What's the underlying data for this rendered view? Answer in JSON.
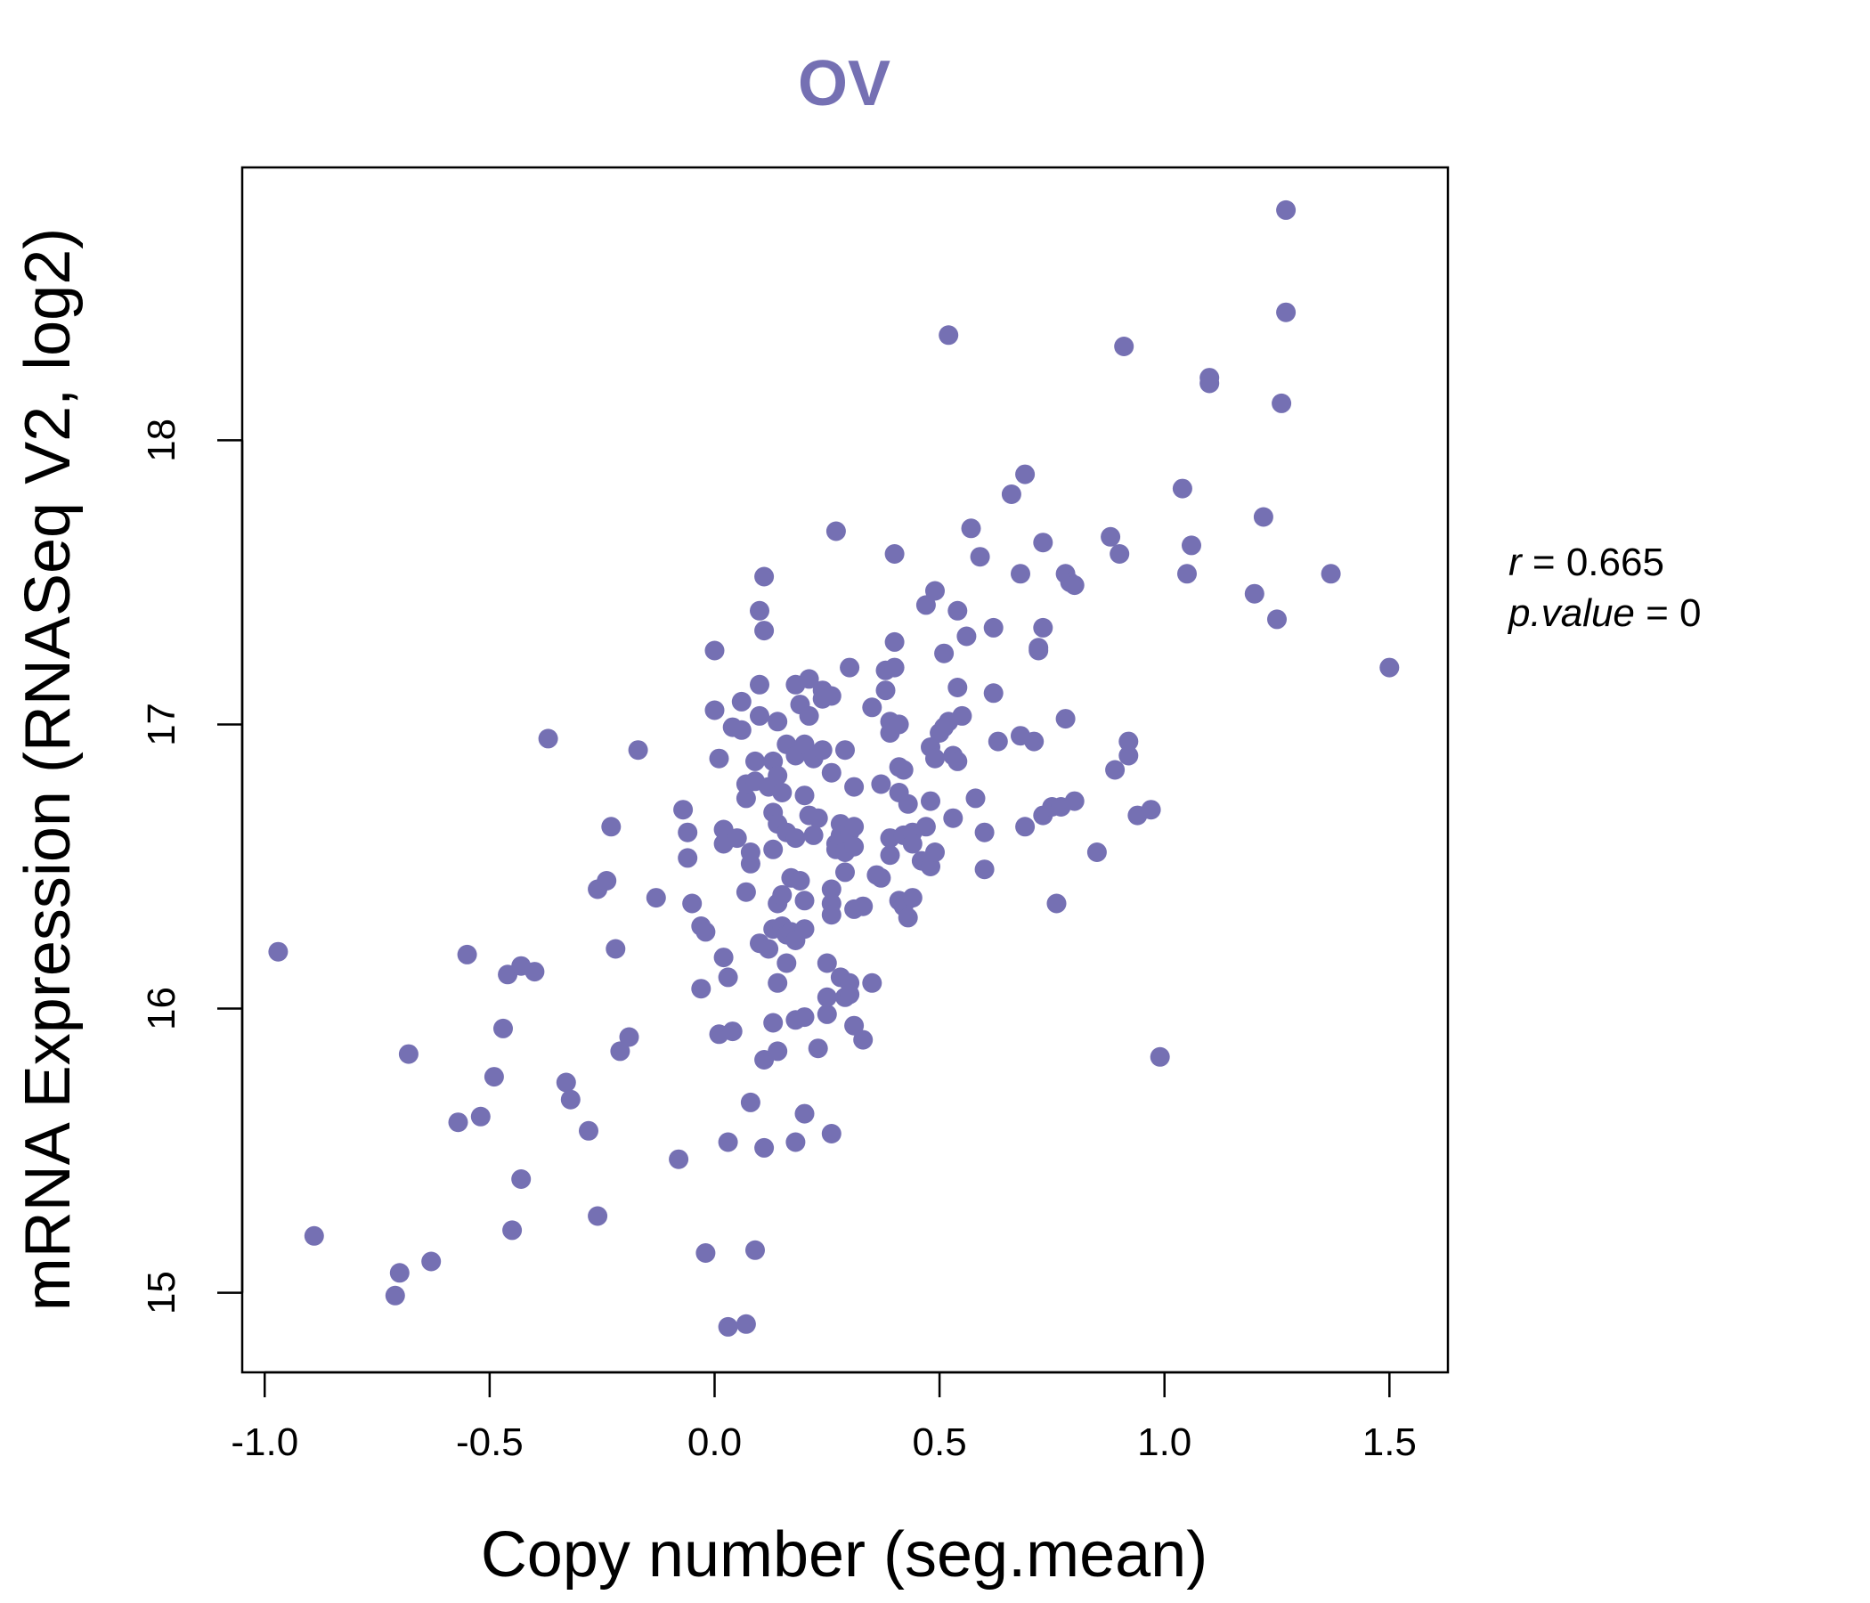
{
  "chart_data": {
    "type": "scatter",
    "title": "OV",
    "xlabel": "Copy number (seg.mean)",
    "ylabel": "mRNA Expression (RNASeq V2, log2)",
    "xlim": [
      -1.05,
      1.63
    ],
    "ylim": [
      14.72,
      18.96
    ],
    "x_ticks": [
      -1.0,
      -0.5,
      0.0,
      0.5,
      1.0,
      1.5
    ],
    "x_tick_labels": [
      "-1.0",
      "-0.5",
      "0.0",
      "0.5",
      "1.0",
      "1.5"
    ],
    "y_ticks": [
      15,
      16,
      17,
      18
    ],
    "y_tick_labels": [
      "15",
      "16",
      "17",
      "18"
    ],
    "grid": false,
    "legend": "none",
    "point_color": "#7570b3",
    "annotation": {
      "r_symbol": "r",
      "r_value": "0.665",
      "p_symbol": "p.value",
      "p_value": "0"
    },
    "points": [
      [
        -0.97,
        16.2
      ],
      [
        -0.89,
        15.2
      ],
      [
        -0.71,
        14.99
      ],
      [
        -0.7,
        15.07
      ],
      [
        -0.68,
        15.84
      ],
      [
        -0.63,
        15.11
      ],
      [
        -0.57,
        15.6
      ],
      [
        -0.55,
        16.19
      ],
      [
        -0.52,
        15.62
      ],
      [
        -0.49,
        15.76
      ],
      [
        -0.47,
        15.93
      ],
      [
        -0.46,
        16.12
      ],
      [
        -0.45,
        15.22
      ],
      [
        -0.43,
        15.4
      ],
      [
        -0.43,
        16.15
      ],
      [
        -0.4,
        16.13
      ],
      [
        -0.37,
        16.95
      ],
      [
        -0.33,
        15.74
      ],
      [
        -0.32,
        15.68
      ],
      [
        -0.28,
        15.57
      ],
      [
        -0.26,
        15.27
      ],
      [
        -0.26,
        16.42
      ],
      [
        -0.24,
        16.45
      ],
      [
        -0.23,
        16.64
      ],
      [
        -0.22,
        16.21
      ],
      [
        -0.21,
        15.85
      ],
      [
        -0.19,
        15.9
      ],
      [
        -0.17,
        16.91
      ],
      [
        -0.13,
        16.39
      ],
      [
        -0.08,
        15.47
      ],
      [
        -0.07,
        16.7
      ],
      [
        -0.06,
        16.62
      ],
      [
        -0.06,
        16.53
      ],
      [
        -0.05,
        16.37
      ],
      [
        -0.03,
        16.29
      ],
      [
        -0.03,
        16.07
      ],
      [
        -0.02,
        16.27
      ],
      [
        -0.02,
        15.14
      ],
      [
        0.0,
        17.26
      ],
      [
        0.0,
        17.05
      ],
      [
        0.01,
        15.91
      ],
      [
        0.01,
        16.88
      ],
      [
        0.02,
        16.63
      ],
      [
        0.02,
        16.58
      ],
      [
        0.02,
        16.18
      ],
      [
        0.03,
        14.88
      ],
      [
        0.03,
        15.53
      ],
      [
        0.03,
        16.11
      ],
      [
        0.04,
        16.99
      ],
      [
        0.04,
        15.92
      ],
      [
        0.05,
        16.6
      ],
      [
        0.06,
        16.98
      ],
      [
        0.06,
        17.08
      ],
      [
        0.07,
        16.74
      ],
      [
        0.07,
        16.79
      ],
      [
        0.07,
        16.41
      ],
      [
        0.07,
        14.89
      ],
      [
        0.08,
        16.51
      ],
      [
        0.08,
        16.55
      ],
      [
        0.08,
        15.67
      ],
      [
        0.09,
        16.8
      ],
      [
        0.09,
        16.87
      ],
      [
        0.09,
        15.15
      ],
      [
        0.1,
        17.4
      ],
      [
        0.1,
        17.14
      ],
      [
        0.1,
        17.03
      ],
      [
        0.1,
        16.23
      ],
      [
        0.11,
        17.33
      ],
      [
        0.11,
        17.52
      ],
      [
        0.11,
        15.82
      ],
      [
        0.11,
        15.51
      ],
      [
        0.12,
        16.21
      ],
      [
        0.12,
        16.78
      ],
      [
        0.13,
        16.87
      ],
      [
        0.13,
        16.69
      ],
      [
        0.13,
        16.56
      ],
      [
        0.13,
        16.28
      ],
      [
        0.13,
        15.95
      ],
      [
        0.14,
        17.01
      ],
      [
        0.14,
        16.82
      ],
      [
        0.14,
        16.65
      ],
      [
        0.14,
        16.37
      ],
      [
        0.14,
        16.09
      ],
      [
        0.14,
        15.85
      ],
      [
        0.15,
        16.76
      ],
      [
        0.15,
        16.4
      ],
      [
        0.15,
        16.29
      ],
      [
        0.16,
        16.93
      ],
      [
        0.16,
        16.62
      ],
      [
        0.16,
        16.26
      ],
      [
        0.16,
        16.16
      ],
      [
        0.17,
        16.46
      ],
      [
        0.17,
        16.27
      ],
      [
        0.18,
        17.14
      ],
      [
        0.18,
        16.89
      ],
      [
        0.18,
        16.6
      ],
      [
        0.18,
        16.24
      ],
      [
        0.18,
        15.96
      ],
      [
        0.18,
        15.53
      ],
      [
        0.19,
        16.45
      ],
      [
        0.19,
        17.07
      ],
      [
        0.2,
        16.93
      ],
      [
        0.2,
        16.75
      ],
      [
        0.2,
        16.38
      ],
      [
        0.2,
        16.28
      ],
      [
        0.2,
        15.97
      ],
      [
        0.2,
        15.63
      ],
      [
        0.21,
        17.16
      ],
      [
        0.21,
        17.03
      ],
      [
        0.21,
        16.68
      ],
      [
        0.22,
        16.88
      ],
      [
        0.22,
        16.61
      ],
      [
        0.23,
        16.67
      ],
      [
        0.23,
        15.86
      ],
      [
        0.24,
        17.12
      ],
      [
        0.24,
        17.09
      ],
      [
        0.24,
        16.91
      ],
      [
        0.25,
        15.98
      ],
      [
        0.25,
        16.16
      ],
      [
        0.25,
        16.04
      ],
      [
        0.26,
        17.1
      ],
      [
        0.26,
        16.83
      ],
      [
        0.26,
        16.42
      ],
      [
        0.26,
        16.37
      ],
      [
        0.26,
        16.33
      ],
      [
        0.26,
        15.56
      ],
      [
        0.27,
        17.68
      ],
      [
        0.27,
        16.58
      ],
      [
        0.27,
        16.56
      ],
      [
        0.28,
        16.65
      ],
      [
        0.28,
        16.61
      ],
      [
        0.28,
        16.11
      ],
      [
        0.29,
        16.91
      ],
      [
        0.29,
        16.55
      ],
      [
        0.29,
        16.48
      ],
      [
        0.29,
        16.04
      ],
      [
        0.3,
        17.2
      ],
      [
        0.3,
        16.09
      ],
      [
        0.3,
        16.62
      ],
      [
        0.3,
        16.05
      ],
      [
        0.31,
        16.64
      ],
      [
        0.31,
        16.78
      ],
      [
        0.31,
        16.57
      ],
      [
        0.31,
        16.35
      ],
      [
        0.31,
        15.94
      ],
      [
        0.33,
        16.36
      ],
      [
        0.33,
        15.89
      ],
      [
        0.35,
        16.09
      ],
      [
        0.35,
        17.06
      ],
      [
        0.36,
        16.47
      ],
      [
        0.37,
        16.79
      ],
      [
        0.37,
        16.46
      ],
      [
        0.38,
        17.19
      ],
      [
        0.38,
        17.12
      ],
      [
        0.39,
        16.6
      ],
      [
        0.39,
        16.54
      ],
      [
        0.39,
        17.01
      ],
      [
        0.39,
        16.97
      ],
      [
        0.4,
        17.2
      ],
      [
        0.4,
        17.29
      ],
      [
        0.4,
        17.6
      ],
      [
        0.41,
        17.0
      ],
      [
        0.41,
        16.76
      ],
      [
        0.41,
        16.38
      ],
      [
        0.41,
        16.85
      ],
      [
        0.42,
        16.84
      ],
      [
        0.42,
        16.61
      ],
      [
        0.42,
        16.36
      ],
      [
        0.43,
        16.32
      ],
      [
        0.43,
        16.72
      ],
      [
        0.44,
        16.62
      ],
      [
        0.44,
        16.58
      ],
      [
        0.44,
        16.39
      ],
      [
        0.46,
        16.52
      ],
      [
        0.47,
        16.64
      ],
      [
        0.47,
        17.42
      ],
      [
        0.48,
        16.92
      ],
      [
        0.48,
        16.73
      ],
      [
        0.48,
        16.5
      ],
      [
        0.49,
        17.47
      ],
      [
        0.49,
        16.88
      ],
      [
        0.49,
        16.55
      ],
      [
        0.5,
        16.97
      ],
      [
        0.51,
        16.99
      ],
      [
        0.51,
        17.25
      ],
      [
        0.52,
        18.37
      ],
      [
        0.52,
        17.01
      ],
      [
        0.53,
        16.67
      ],
      [
        0.53,
        16.89
      ],
      [
        0.54,
        16.87
      ],
      [
        0.54,
        17.4
      ],
      [
        0.54,
        17.13
      ],
      [
        0.55,
        17.03
      ],
      [
        0.56,
        17.31
      ],
      [
        0.57,
        17.69
      ],
      [
        0.58,
        16.74
      ],
      [
        0.59,
        17.59
      ],
      [
        0.6,
        16.49
      ],
      [
        0.6,
        16.62
      ],
      [
        0.62,
        17.11
      ],
      [
        0.62,
        17.34
      ],
      [
        0.63,
        16.94
      ],
      [
        0.66,
        17.81
      ],
      [
        0.68,
        17.53
      ],
      [
        0.68,
        16.96
      ],
      [
        0.69,
        17.88
      ],
      [
        0.69,
        16.64
      ],
      [
        0.71,
        16.94
      ],
      [
        0.72,
        17.26
      ],
      [
        0.72,
        17.27
      ],
      [
        0.73,
        17.34
      ],
      [
        0.73,
        17.64
      ],
      [
        0.73,
        16.68
      ],
      [
        0.75,
        16.71
      ],
      [
        0.76,
        16.37
      ],
      [
        0.77,
        16.71
      ],
      [
        0.78,
        17.53
      ],
      [
        0.78,
        17.02
      ],
      [
        0.79,
        17.5
      ],
      [
        0.8,
        17.49
      ],
      [
        0.8,
        16.73
      ],
      [
        0.85,
        16.55
      ],
      [
        0.88,
        17.66
      ],
      [
        0.89,
        16.84
      ],
      [
        0.9,
        17.6
      ],
      [
        0.91,
        18.33
      ],
      [
        0.92,
        16.94
      ],
      [
        0.92,
        16.89
      ],
      [
        0.94,
        16.68
      ],
      [
        0.97,
        16.7
      ],
      [
        0.99,
        15.83
      ],
      [
        1.04,
        17.83
      ],
      [
        1.05,
        17.53
      ],
      [
        1.06,
        17.63
      ],
      [
        1.1,
        18.22
      ],
      [
        1.1,
        18.2
      ],
      [
        1.2,
        17.46
      ],
      [
        1.22,
        17.73
      ],
      [
        1.25,
        17.37
      ],
      [
        1.26,
        18.13
      ],
      [
        1.27,
        18.45
      ],
      [
        1.27,
        18.81
      ],
      [
        1.37,
        17.53
      ],
      [
        1.5,
        17.2
      ]
    ]
  }
}
